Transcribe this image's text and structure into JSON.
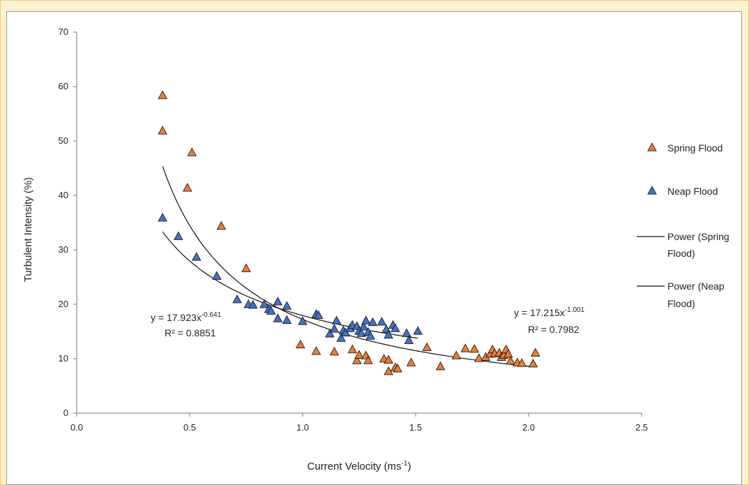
{
  "chart_data": {
    "type": "scatter",
    "title": "",
    "xlabel": "Current Velocity (ms",
    "xlabel_sup": "-1",
    "xlabel_end": ")",
    "ylabel": "Turbulent Intensity (%)",
    "xlim": [
      0.0,
      2.5
    ],
    "ylim": [
      0,
      70
    ],
    "xticks": [
      "0.0",
      "0.5",
      "1.0",
      "1.5",
      "2.0",
      "2.5"
    ],
    "yticks": [
      "0",
      "10",
      "20",
      "30",
      "40",
      "50",
      "60",
      "70"
    ],
    "grid": false,
    "legend_position": "right",
    "series": [
      {
        "name": "Spring Flood",
        "color": "#ed7d31",
        "marker": "triangle",
        "points": [
          [
            0.38,
            58.3
          ],
          [
            0.38,
            51.8
          ],
          [
            0.49,
            41.3
          ],
          [
            0.51,
            47.8
          ],
          [
            0.64,
            34.3
          ],
          [
            0.75,
            26.5
          ],
          [
            0.99,
            12.5
          ],
          [
            1.06,
            11.3
          ],
          [
            1.14,
            11.2
          ],
          [
            1.22,
            11.6
          ],
          [
            1.24,
            9.6
          ],
          [
            1.25,
            10.6
          ],
          [
            1.28,
            10.5
          ],
          [
            1.29,
            9.6
          ],
          [
            1.36,
            9.9
          ],
          [
            1.38,
            9.7
          ],
          [
            1.38,
            7.6
          ],
          [
            1.41,
            8.3
          ],
          [
            1.42,
            8.1
          ],
          [
            1.48,
            9.2
          ],
          [
            1.55,
            12.0
          ],
          [
            1.61,
            8.5
          ],
          [
            1.68,
            10.5
          ],
          [
            1.72,
            11.8
          ],
          [
            1.76,
            11.7
          ],
          [
            1.78,
            10.0
          ],
          [
            1.81,
            10.2
          ],
          [
            1.83,
            10.8
          ],
          [
            1.84,
            11.6
          ],
          [
            1.85,
            10.9
          ],
          [
            1.87,
            11.0
          ],
          [
            1.88,
            10.2
          ],
          [
            1.89,
            10.6
          ],
          [
            1.9,
            11.6
          ],
          [
            1.91,
            10.8
          ],
          [
            1.92,
            9.5
          ],
          [
            1.95,
            9.2
          ],
          [
            1.97,
            9.1
          ],
          [
            2.02,
            9.0
          ],
          [
            2.03,
            11.0
          ]
        ],
        "trendline": {
          "label": "Power (Spring Flood)",
          "a": 17.215,
          "b": -1.001,
          "x_range": [
            0.38,
            2.03
          ]
        },
        "equation": "y = 17.215x",
        "equation_exp": "-1.001",
        "r2": "R² = 0.7982"
      },
      {
        "name": "Neap Flood",
        "color": "#4472c4",
        "marker": "triangle",
        "points": [
          [
            0.38,
            35.8
          ],
          [
            0.45,
            32.4
          ],
          [
            0.53,
            28.6
          ],
          [
            0.62,
            25.1
          ],
          [
            0.71,
            20.8
          ],
          [
            0.76,
            19.9
          ],
          [
            0.78,
            19.8
          ],
          [
            0.83,
            19.9
          ],
          [
            0.85,
            19.0
          ],
          [
            0.86,
            18.7
          ],
          [
            0.89,
            20.4
          ],
          [
            0.89,
            17.3
          ],
          [
            0.93,
            19.6
          ],
          [
            0.93,
            17.0
          ],
          [
            1.0,
            16.8
          ],
          [
            1.06,
            18.1
          ],
          [
            1.07,
            17.9
          ],
          [
            1.12,
            14.5
          ],
          [
            1.14,
            15.4
          ],
          [
            1.15,
            16.9
          ],
          [
            1.17,
            13.7
          ],
          [
            1.18,
            15.1
          ],
          [
            1.19,
            14.7
          ],
          [
            1.21,
            15.5
          ],
          [
            1.22,
            16.1
          ],
          [
            1.24,
            15.9
          ],
          [
            1.25,
            15.0
          ],
          [
            1.26,
            14.6
          ],
          [
            1.27,
            15.8
          ],
          [
            1.28,
            16.9
          ],
          [
            1.29,
            14.8
          ],
          [
            1.3,
            14.1
          ],
          [
            1.31,
            16.6
          ],
          [
            1.35,
            16.7
          ],
          [
            1.37,
            15.3
          ],
          [
            1.38,
            14.3
          ],
          [
            1.4,
            16.1
          ],
          [
            1.41,
            15.5
          ],
          [
            1.46,
            14.6
          ],
          [
            1.47,
            13.3
          ],
          [
            1.51,
            15.0
          ]
        ],
        "trendline": {
          "label": "Power (Neap Flood)",
          "a": 17.923,
          "b": -0.641,
          "x_range": [
            0.38,
            1.51
          ]
        },
        "equation": "y = 17.923x",
        "equation_exp": "-0.641",
        "r2": "R² = 0.8851"
      }
    ],
    "legend": [
      {
        "type": "marker",
        "series": "Spring Flood",
        "text": "Spring Flood"
      },
      {
        "type": "marker",
        "series": "Neap Flood",
        "text": "Neap Flood"
      },
      {
        "type": "line",
        "lines": [
          "Power (Spring",
          "Flood)"
        ]
      },
      {
        "type": "line",
        "lines": [
          "Power (Neap",
          "Flood)"
        ]
      }
    ]
  }
}
